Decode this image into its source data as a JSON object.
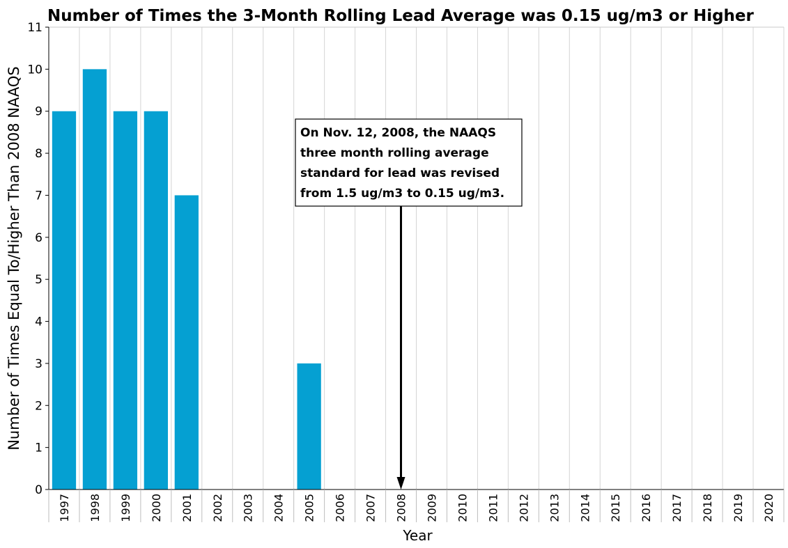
{
  "chart_data": {
    "type": "bar",
    "title": "Number of Times the 3-Month Rolling Lead Average was 0.15 ug/m3 or Higher",
    "xlabel": "Year",
    "ylabel": "Number of Times Equal To/Higher Than 2008 NAAQS",
    "categories": [
      "1997",
      "1998",
      "1999",
      "2000",
      "2001",
      "2002",
      "2003",
      "2004",
      "2005",
      "2006",
      "2007",
      "2008",
      "2009",
      "2010",
      "2011",
      "2012",
      "2013",
      "2014",
      "2015",
      "2016",
      "2017",
      "2018",
      "2019",
      "2020"
    ],
    "values": [
      9,
      10,
      9,
      9,
      7,
      0,
      0,
      0,
      3,
      0,
      0,
      0,
      0,
      0,
      0,
      0,
      0,
      0,
      0,
      0,
      0,
      0,
      0,
      0
    ],
    "ylim": [
      0,
      11
    ],
    "yticks": [
      0,
      1,
      2,
      3,
      4,
      5,
      6,
      7,
      8,
      9,
      10,
      11
    ],
    "grid": "vertical",
    "bar_color": "#05a0d2",
    "annotation": {
      "lines": [
        "On Nov. 12, 2008, the NAAQS",
        "three month rolling average",
        "standard for lead was revised",
        "from 1.5 ug/m3 to 0.15 ug/m3."
      ],
      "arrow_category": "2008",
      "arrow_target_value": 0
    }
  }
}
